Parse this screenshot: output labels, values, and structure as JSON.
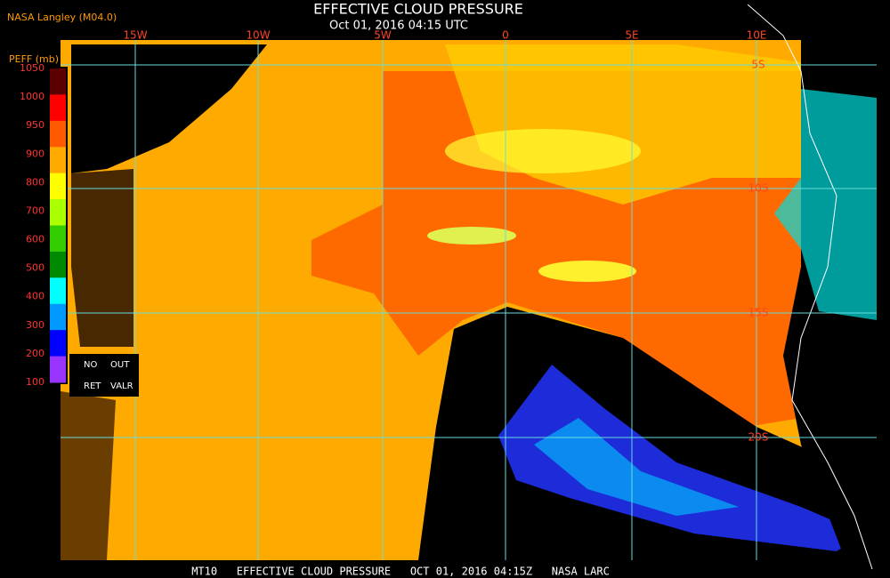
{
  "header": {
    "source": "NASA Langley (M04.0)",
    "title": "EFFECTIVE CLOUD PRESSURE",
    "subtitle": "Oct 01, 2016 04:15 UTC"
  },
  "legend": {
    "title": "PEFF (mb)",
    "labels": [
      1050,
      1000,
      950,
      900,
      800,
      700,
      600,
      500,
      400,
      300,
      200,
      100
    ],
    "colors": [
      "#5a0000",
      "#ff0000",
      "#ff5a00",
      "#ffaa00",
      "#ffff00",
      "#aaff00",
      "#33cc00",
      "#008800",
      "#00ffff",
      "#0099ff",
      "#0000ff",
      "#9933ff"
    ],
    "no_ret": [
      "NO",
      "RET"
    ],
    "out_valr": [
      "OUT",
      "VALR"
    ]
  },
  "map": {
    "lon_labels": [
      "15W",
      "10W",
      "5W",
      "0",
      "5E",
      "10E"
    ],
    "lat_labels": [
      "5S",
      "10S",
      "15S",
      "20S"
    ]
  },
  "footer": "MT10   EFFECTIVE CLOUD PRESSURE   OCT 01, 2016 04:15Z   NASA LARC"
}
